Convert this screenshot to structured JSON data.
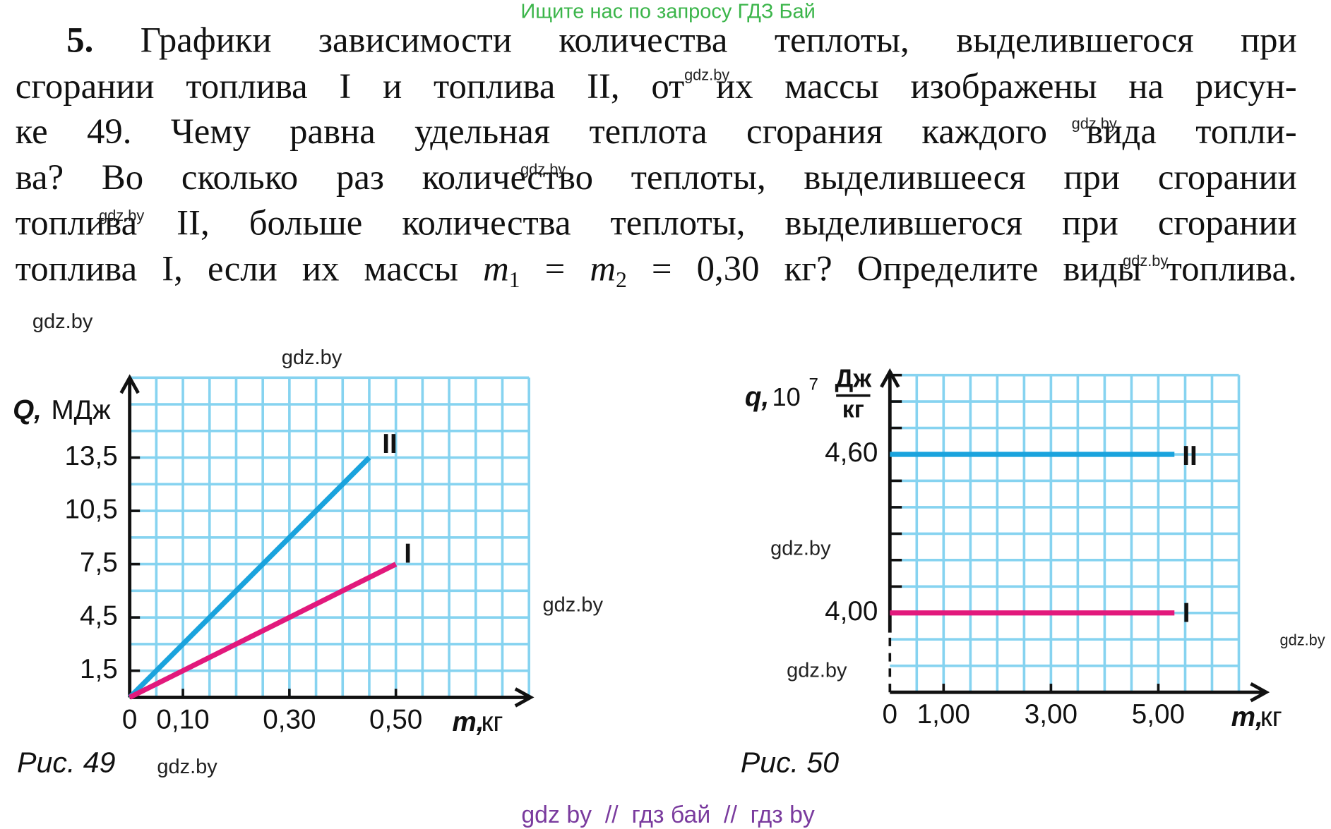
{
  "header": "Ищите нас по запросу ГДЗ Бай",
  "problem": {
    "number": "5.",
    "lines": [
      "Графики зависимости количества теплоты, выделившегося при",
      "сгорании топлива I и топлива II, от их массы изображены на рисун-",
      "ке 49. Чему равна удельная теплота сгорания каждого вида топли-",
      "ва? Во сколько раз количество теплоты, выделившееся при сгорании",
      "топлива II, больше количества теплоты, выделившегося при сгорании"
    ],
    "last_line": {
      "before": "топлива I, если их массы",
      "formula": [
        "m",
        "1",
        "=",
        "m",
        "2",
        "=",
        "0,30 кг"
      ],
      "after": "? Определите виды топлива."
    }
  },
  "watermarks": [
    "gdz.by",
    "gdz.by",
    "gdz.by",
    "gdz.by",
    "gdz.by",
    "gdz.by",
    "gdz.by",
    "gdz.by",
    "gdz.by",
    "gdz.by",
    "gdz.by",
    "gdz.by"
  ],
  "chart_data": [
    {
      "type": "line",
      "caption": "Рис. 49",
      "ylabel": {
        "symbol": "Q,",
        "unit": "МДж"
      },
      "xlabel": {
        "symbol": "m,",
        "unit": "кг"
      },
      "series": [
        {
          "name": "II",
          "color": "#1aa3dd",
          "x": [
            0,
            0.45
          ],
          "values": [
            0,
            13.5
          ]
        },
        {
          "name": "I",
          "color": "#e2197c",
          "x": [
            0,
            0.5
          ],
          "values": [
            0,
            7.5
          ]
        }
      ],
      "xlim": [
        0,
        0.75
      ],
      "xticks": [
        0,
        {
          "value": 0.1,
          "label": "0,10"
        },
        {
          "value": 0.3,
          "label": "0,30"
        },
        {
          "value": 0.5,
          "label": "0,50"
        }
      ],
      "ylim": [
        0,
        18
      ],
      "yticks": [
        {
          "value": 1.5,
          "label": "1,5"
        },
        {
          "value": 4.5,
          "label": "4,5"
        },
        {
          "value": 7.5,
          "label": "7,5"
        },
        {
          "value": 10.5,
          "label": "10,5"
        },
        {
          "value": 13.5,
          "label": "13,5"
        }
      ],
      "grid": true,
      "grid_color": "#86d3f0",
      "grid_step": {
        "x": 0.05,
        "y": 1.5
      }
    },
    {
      "type": "line",
      "caption": "Рис. 50",
      "ylabel": {
        "symbol": "q,",
        "base": "10",
        "exponent": "7",
        "numerator": "Дж",
        "denominator": "кг"
      },
      "xlabel": {
        "symbol": "m,",
        "unit": "кг"
      },
      "series": [
        {
          "name": "II",
          "color": "#1aa3dd",
          "x": [
            0,
            5.3
          ],
          "values": [
            4.6,
            4.6
          ]
        },
        {
          "name": "I",
          "color": "#e2197c",
          "x": [
            0,
            5.3
          ],
          "values": [
            4,
            4
          ]
        }
      ],
      "xlim": [
        0,
        6.5
      ],
      "xticks": [
        0,
        {
          "value": 1,
          "label": "1,00"
        },
        {
          "value": 3,
          "label": "3,00"
        },
        {
          "value": 5,
          "label": "5,00"
        }
      ],
      "ylim": [
        3.7,
        4.9
      ],
      "yticks": [
        {
          "value": 4,
          "label": "4,00"
        },
        {
          "value": 4.6,
          "label": "4,60"
        }
      ],
      "grid": true,
      "grid_color": "#86d3f0",
      "grid_step": {
        "x": 0.5,
        "y": 0.1
      },
      "axis_break": true
    }
  ],
  "footer": "gdz by  //  гдз бай  //  гдз by"
}
